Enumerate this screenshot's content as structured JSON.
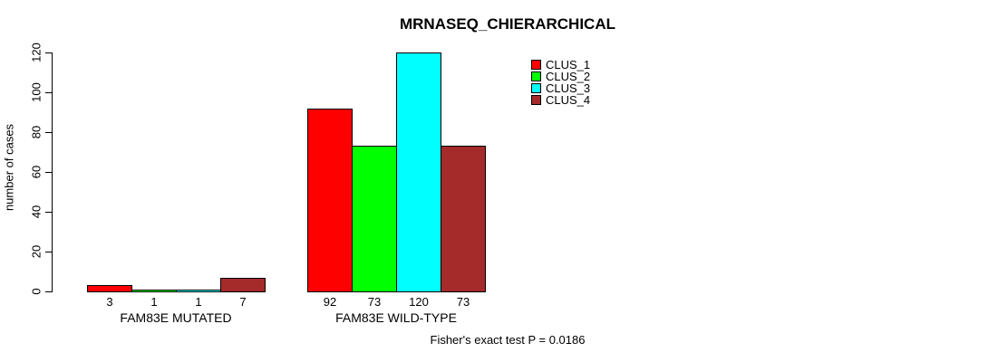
{
  "chart_data": {
    "type": "bar",
    "title": "MRNASEQ_CHIERARCHICAL",
    "ylabel": "number of cases",
    "xlabel": "",
    "ylim": [
      0,
      120
    ],
    "yticks": [
      0,
      20,
      40,
      60,
      80,
      100,
      120
    ],
    "grid": false,
    "legend_position": "top-right",
    "categories": [
      "FAM83E MUTATED",
      "FAM83E WILD-TYPE"
    ],
    "series": [
      {
        "name": "CLUS_1",
        "color": "#ff0000",
        "values": [
          3,
          92
        ]
      },
      {
        "name": "CLUS_2",
        "color": "#00ff00",
        "values": [
          1,
          73
        ]
      },
      {
        "name": "CLUS_3",
        "color": "#00ffff",
        "values": [
          1,
          120
        ]
      },
      {
        "name": "CLUS_4",
        "color": "#a52a2a",
        "values": [
          7,
          73
        ]
      }
    ],
    "bar_labels": [
      [
        3,
        1,
        1,
        7
      ],
      [
        92,
        73,
        120,
        73
      ]
    ],
    "annotation": "Fisher's exact test P = 0.0186"
  },
  "colors": {
    "background": "#ffffff",
    "axis": "#000000",
    "text": "#000000"
  }
}
